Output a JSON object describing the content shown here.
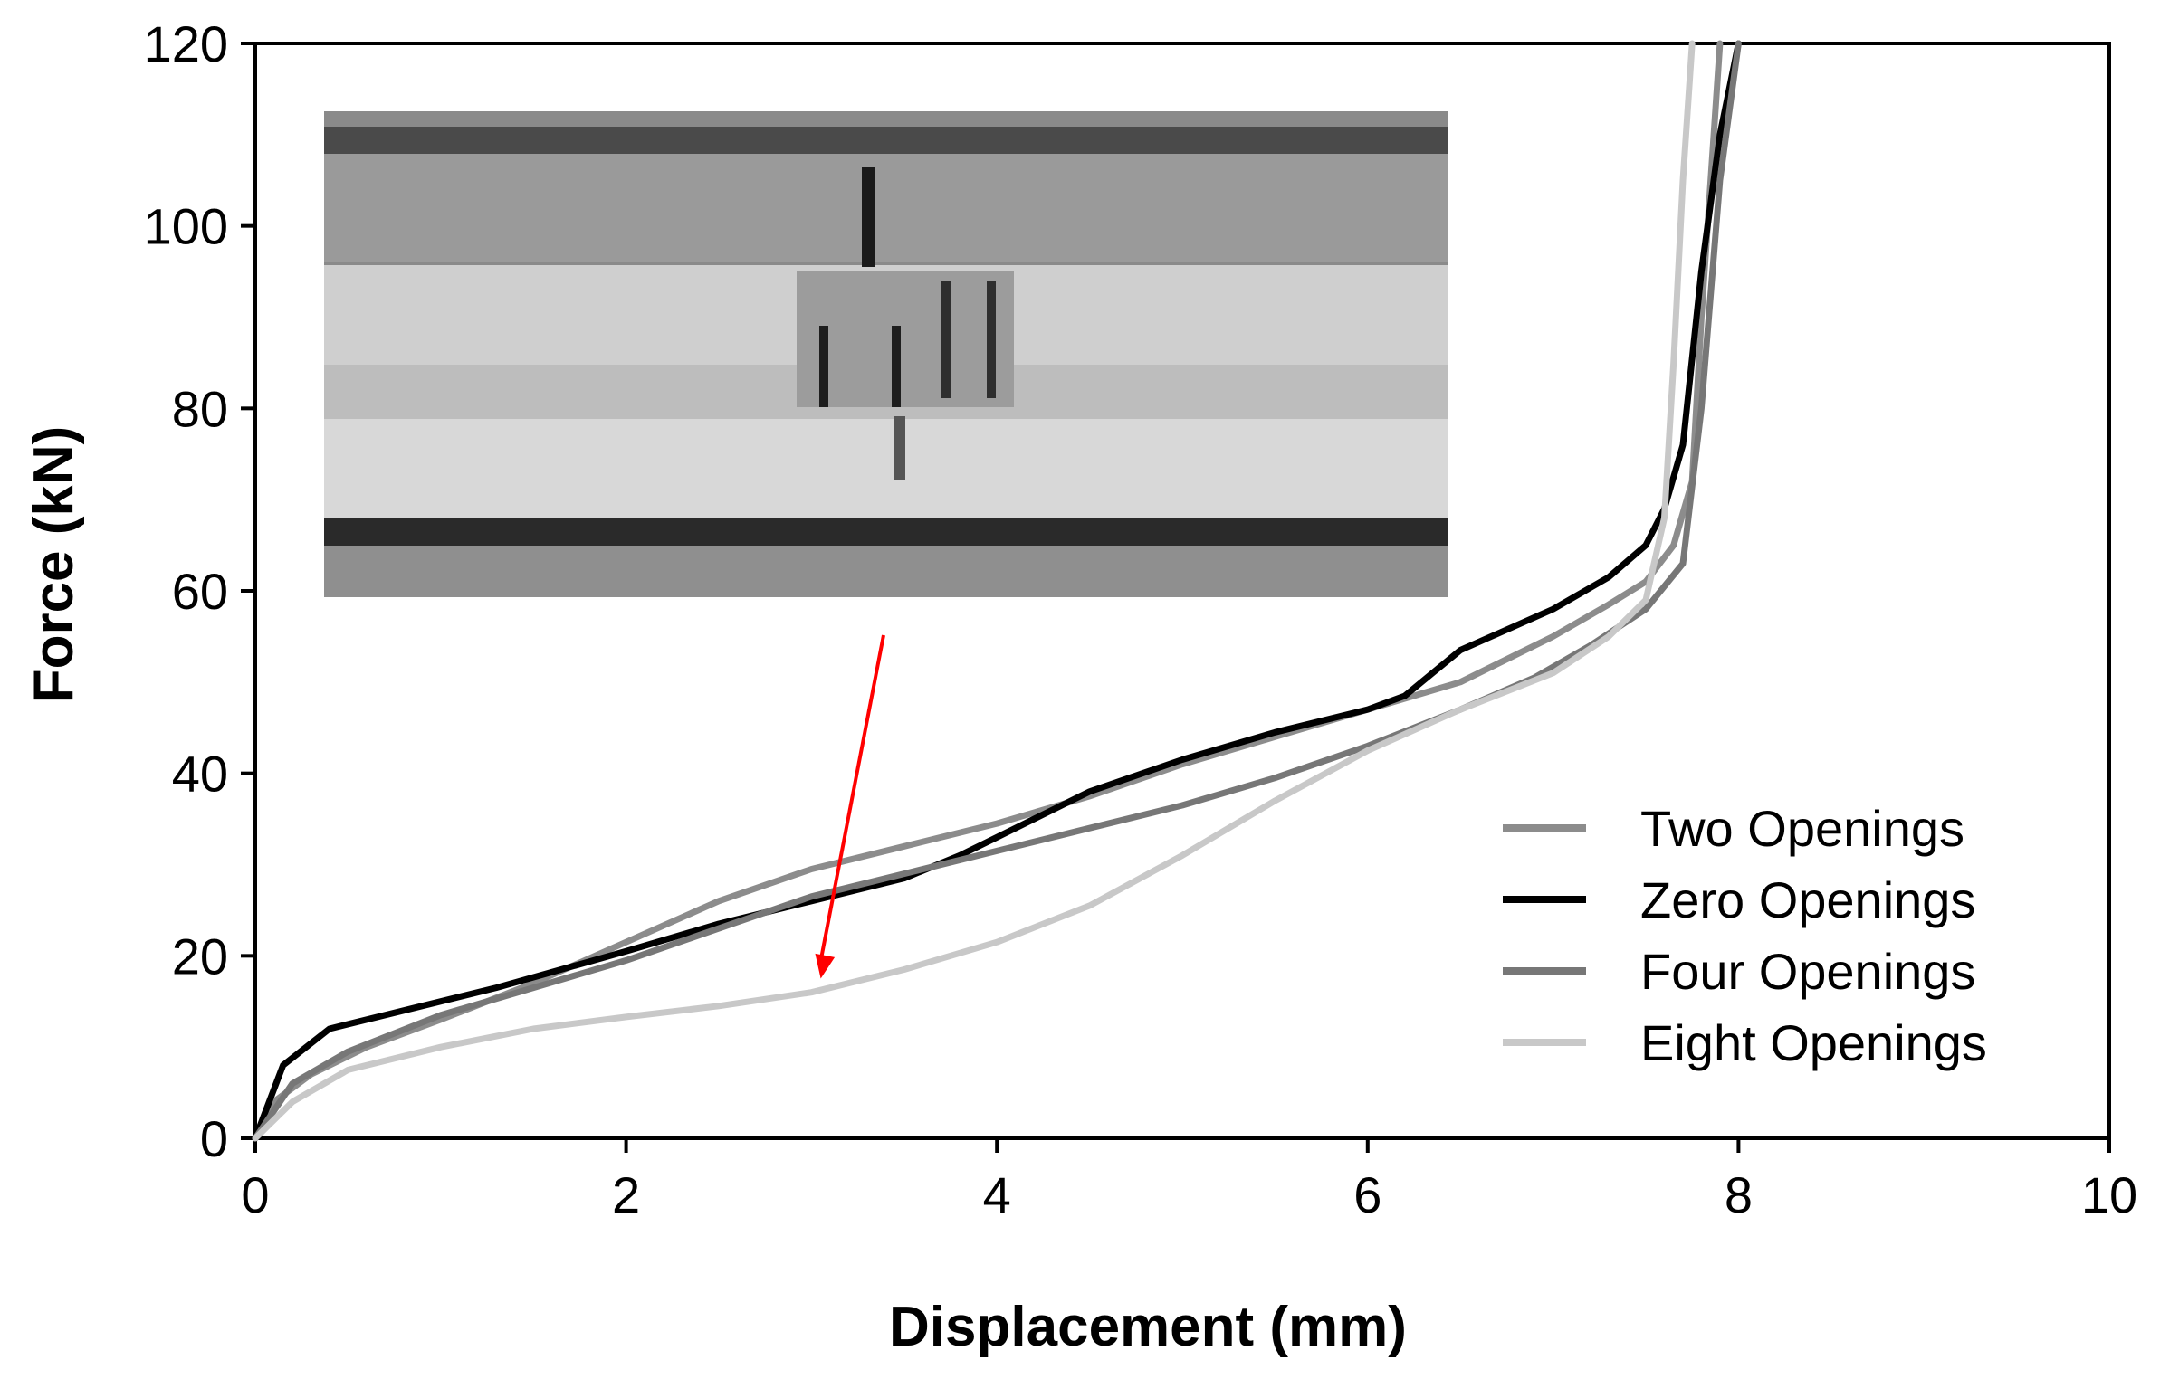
{
  "chart_data": {
    "type": "line",
    "xlabel": "Displacement (mm)",
    "ylabel": "Force (kN)",
    "xlim": [
      0,
      10
    ],
    "ylim": [
      0,
      120
    ],
    "xticks": [
      0,
      2,
      4,
      6,
      8,
      10
    ],
    "yticks": [
      0,
      20,
      40,
      60,
      80,
      100,
      120
    ],
    "grid": false,
    "legend_position": "lower-right",
    "inset": "photograph of compressed specimen between loading plates",
    "series": [
      {
        "name": "Two Openings",
        "color": "#8c8c8c",
        "points": [
          [
            0,
            0
          ],
          [
            0.1,
            4
          ],
          [
            0.3,
            7
          ],
          [
            0.6,
            10
          ],
          [
            1.0,
            13
          ],
          [
            1.5,
            17
          ],
          [
            2.0,
            21.5
          ],
          [
            2.5,
            26
          ],
          [
            3.0,
            29.5
          ],
          [
            3.5,
            32
          ],
          [
            4.0,
            34.5
          ],
          [
            4.5,
            37.5
          ],
          [
            5.0,
            41
          ],
          [
            5.5,
            44
          ],
          [
            6.0,
            47
          ],
          [
            6.5,
            50
          ],
          [
            7.0,
            55
          ],
          [
            7.3,
            58.5
          ],
          [
            7.5,
            61
          ],
          [
            7.65,
            65
          ],
          [
            7.75,
            72
          ],
          [
            7.8,
            90
          ],
          [
            7.85,
            105
          ],
          [
            7.9,
            120
          ]
        ]
      },
      {
        "name": "Zero Openings",
        "color": "#000000",
        "points": [
          [
            0,
            0
          ],
          [
            0.15,
            8
          ],
          [
            0.4,
            12
          ],
          [
            0.8,
            14
          ],
          [
            1.3,
            16.5
          ],
          [
            2.0,
            20.5
          ],
          [
            2.5,
            23.5
          ],
          [
            3.0,
            26
          ],
          [
            3.5,
            28.5
          ],
          [
            3.8,
            31
          ],
          [
            4.0,
            33
          ],
          [
            4.5,
            38
          ],
          [
            5.0,
            41.5
          ],
          [
            5.5,
            44.5
          ],
          [
            6.0,
            47
          ],
          [
            6.2,
            48.5
          ],
          [
            6.5,
            53.5
          ],
          [
            7.0,
            58
          ],
          [
            7.3,
            61.5
          ],
          [
            7.5,
            65
          ],
          [
            7.6,
            69
          ],
          [
            7.7,
            76
          ],
          [
            7.8,
            95
          ],
          [
            7.9,
            110
          ],
          [
            8.0,
            120
          ]
        ]
      },
      {
        "name": "Four Openings",
        "color": "#777777",
        "points": [
          [
            0,
            0
          ],
          [
            0.2,
            6
          ],
          [
            0.5,
            9.5
          ],
          [
            1.0,
            13.5
          ],
          [
            1.5,
            16.5
          ],
          [
            2.0,
            19.5
          ],
          [
            2.5,
            23
          ],
          [
            3.0,
            26.5
          ],
          [
            3.5,
            29
          ],
          [
            4.0,
            31.5
          ],
          [
            4.5,
            34
          ],
          [
            5.0,
            36.5
          ],
          [
            5.5,
            39.5
          ],
          [
            6.0,
            43
          ],
          [
            6.5,
            47
          ],
          [
            6.9,
            50.5
          ],
          [
            7.2,
            54
          ],
          [
            7.5,
            58
          ],
          [
            7.7,
            63
          ],
          [
            7.8,
            80
          ],
          [
            7.9,
            105
          ],
          [
            8.0,
            120
          ]
        ]
      },
      {
        "name": "Eight Openings",
        "color": "#c8c8c8",
        "points": [
          [
            0,
            0
          ],
          [
            0.2,
            4
          ],
          [
            0.5,
            7.5
          ],
          [
            1.0,
            10
          ],
          [
            1.5,
            12
          ],
          [
            2.0,
            13.3
          ],
          [
            2.5,
            14.5
          ],
          [
            3.0,
            16
          ],
          [
            3.5,
            18.5
          ],
          [
            4.0,
            21.5
          ],
          [
            4.5,
            25.5
          ],
          [
            5.0,
            31
          ],
          [
            5.5,
            37
          ],
          [
            6.0,
            42.5
          ],
          [
            6.5,
            47
          ],
          [
            7.0,
            51
          ],
          [
            7.3,
            55
          ],
          [
            7.5,
            59
          ],
          [
            7.6,
            68
          ],
          [
            7.65,
            85
          ],
          [
            7.7,
            105
          ],
          [
            7.75,
            120
          ]
        ]
      }
    ],
    "annotation": {
      "type": "arrow",
      "color": "#ff0000",
      "target": [
        3.05,
        18.5
      ]
    }
  }
}
